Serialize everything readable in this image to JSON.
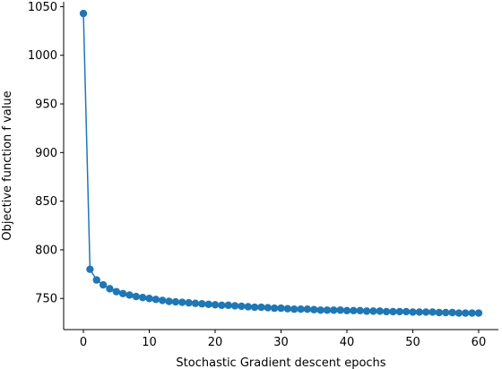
{
  "chart_data": {
    "type": "line",
    "title": "",
    "xlabel": "Stochastic Gradient descent epochs",
    "ylabel": "Objective function f value",
    "xlim": [
      -3,
      63
    ],
    "ylim": [
      718,
      1055
    ],
    "xticks": [
      0,
      10,
      20,
      30,
      40,
      50,
      60
    ],
    "yticks": [
      750,
      800,
      850,
      900,
      950,
      1000,
      1050
    ],
    "grid": false,
    "legend": "none",
    "colors": {
      "series": "#1f77b4",
      "axes": "#000000"
    },
    "series": [
      {
        "marker": "circle",
        "x": [
          0,
          1,
          2,
          3,
          4,
          5,
          6,
          7,
          8,
          9,
          10,
          11,
          12,
          13,
          14,
          15,
          16,
          17,
          18,
          19,
          20,
          21,
          22,
          23,
          24,
          25,
          26,
          27,
          28,
          29,
          30,
          31,
          32,
          33,
          34,
          35,
          36,
          37,
          38,
          39,
          40,
          41,
          42,
          43,
          44,
          45,
          46,
          47,
          48,
          49,
          50,
          51,
          52,
          53,
          54,
          55,
          56,
          57,
          58,
          59,
          60
        ],
        "y": [
          1043,
          780,
          769,
          764,
          760,
          757,
          755,
          753.5,
          752,
          751,
          750,
          749,
          748,
          747,
          746.5,
          746,
          745.5,
          745,
          744.5,
          744,
          743.5,
          743,
          743,
          742.5,
          742,
          741.5,
          741,
          741,
          740.5,
          740,
          740,
          739.5,
          739,
          739,
          739,
          738.5,
          738,
          738,
          738,
          738,
          737.5,
          737.5,
          737.5,
          737,
          737,
          737,
          736.5,
          736.5,
          736.5,
          736.5,
          736,
          736,
          736,
          736,
          735.5,
          735.5,
          735.5,
          735,
          735,
          735,
          735
        ]
      }
    ]
  }
}
